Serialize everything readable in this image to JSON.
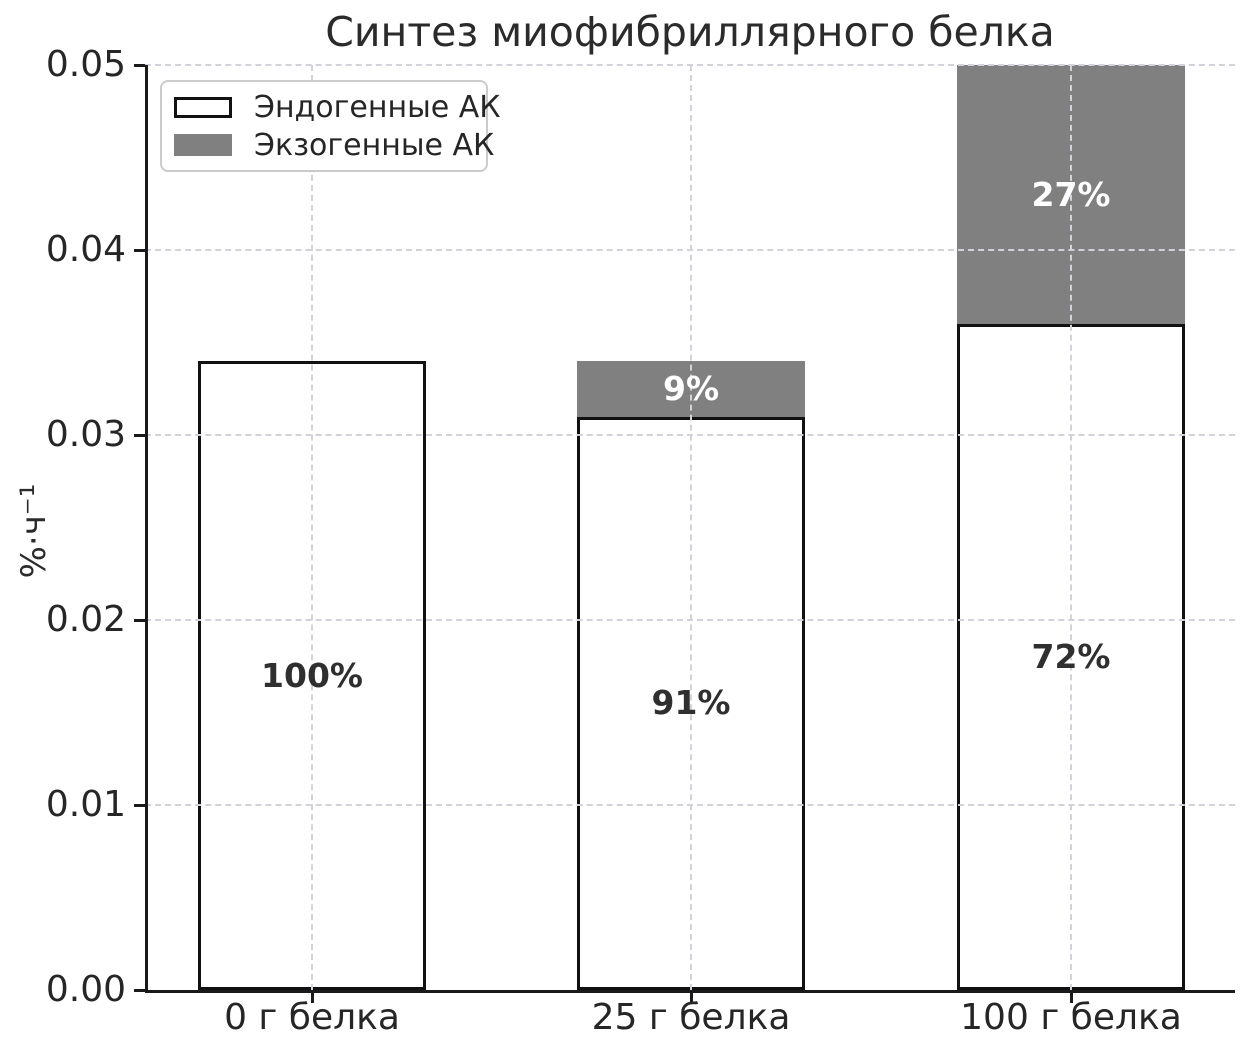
{
  "title": "Синтез миофибриллярного белка",
  "ylabel": "%·ч⁻¹",
  "legend": {
    "items": [
      {
        "label": "Эндогенные АК",
        "swatch_color": "#ffffff",
        "swatch_border": "#111111"
      },
      {
        "label": "Экзогенные АК",
        "swatch_color": "#808080",
        "swatch_border": "#808080"
      }
    ]
  },
  "chart_data": {
    "type": "bar",
    "stacked": true,
    "title": "Синтез миофибриллярного белка",
    "xlabel": "",
    "ylabel": "%·ч⁻¹",
    "categories": [
      "0 г белка",
      "25 г белка",
      "100 г белка"
    ],
    "series": [
      {
        "name": "Эндогенные АК",
        "color": "#ffffff",
        "edge_color": "#111111",
        "values": [
          0.034,
          0.031,
          0.036
        ],
        "bar_labels": [
          "100%",
          "91%",
          "72%"
        ],
        "bar_label_color": "#2f2f2f"
      },
      {
        "name": "Экзогенные АК",
        "color": "#808080",
        "values": [
          0,
          0.003,
          0.014
        ],
        "bar_labels": [
          "",
          "9%",
          "27%"
        ],
        "bar_label_color": "#ffffff"
      }
    ],
    "ylim": [
      0,
      0.05
    ],
    "yticks": [
      0,
      0.01,
      0.02,
      0.03,
      0.04,
      0.05
    ],
    "ytick_labels": [
      "0.00",
      "0.01",
      "0.02",
      "0.03",
      "0.04",
      "0.05"
    ],
    "grid": {
      "style": "dashed",
      "color": "#d2d2da",
      "axes": "both",
      "above_bars": true
    },
    "legend_position": "upper-left",
    "axis_color": "#1a1a1a",
    "tick_label_color": "#262626"
  }
}
